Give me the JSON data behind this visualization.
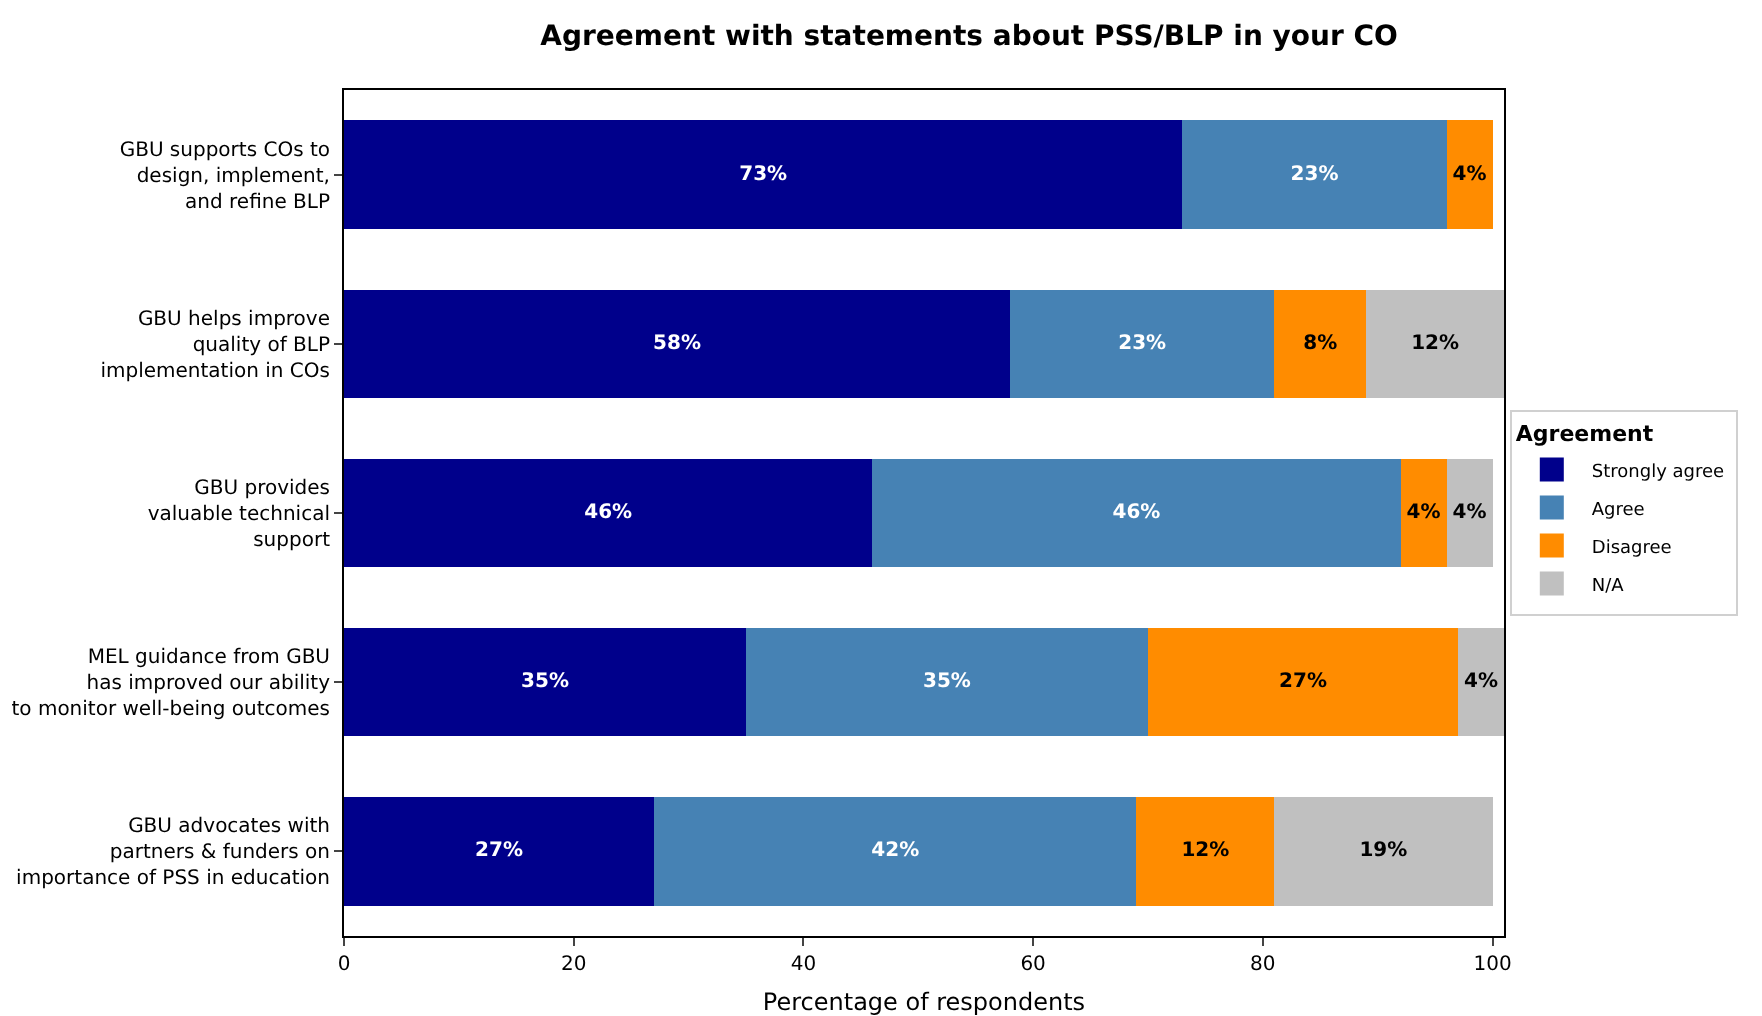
{
  "chart_data": {
    "type": "bar",
    "orientation": "horizontal",
    "stacked": true,
    "title": "Agreement with statements about PSS/BLP in your CO",
    "xlabel": "Percentage of respondents",
    "legend_title": "Agreement",
    "legend": "right",
    "grid": false,
    "categories": [
      "GBU supports COs to\ndesign, implement,\nand refine BLP",
      "GBU helps improve\nquality of BLP\nimplementation in COs",
      "GBU provides\nvaluable technical\nsupport",
      "MEL guidance from GBU\nhas improved our ability\nto monitor well-being outcomes",
      "GBU advocates with\npartners & funders on\nimportance of PSS in education"
    ],
    "xlim": [
      0,
      101
    ],
    "xticks": [
      0,
      20,
      40,
      60,
      80,
      100
    ],
    "series": [
      {
        "name": "Strongly agree",
        "color": "#00008b",
        "values": [
          73,
          58,
          46,
          35,
          27
        ],
        "value_labels": [
          "73%",
          "58%",
          "46%",
          "35%",
          "27%"
        ]
      },
      {
        "name": "Agree",
        "color": "#4682b4",
        "values": [
          23,
          23,
          46,
          35,
          42
        ],
        "value_labels": [
          "23%",
          "23%",
          "46%",
          "35%",
          "42%"
        ]
      },
      {
        "name": "Disagree",
        "color": "#ff8c00",
        "values": [
          4,
          8,
          4,
          27,
          12
        ],
        "value_labels": [
          "4%",
          "8%",
          "4%",
          "27%",
          "12%"
        ]
      },
      {
        "name": "N/A",
        "color": "#c0c0c0",
        "values": [
          null,
          12,
          4,
          4,
          19
        ],
        "value_labels": [
          null,
          "12%",
          "4%",
          "4%",
          "19%"
        ]
      }
    ]
  }
}
